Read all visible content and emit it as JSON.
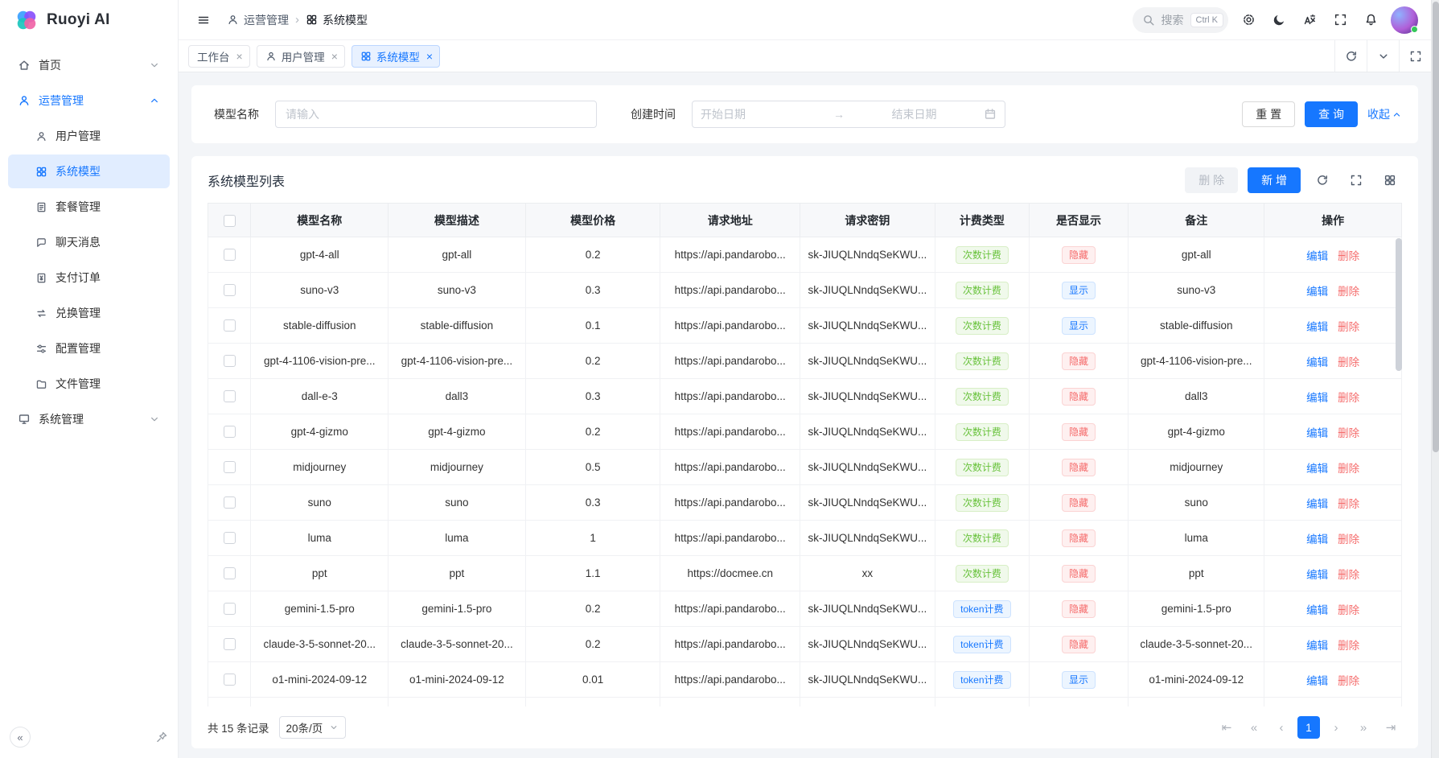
{
  "app": {
    "name": "Ruoyi AI"
  },
  "topbar": {
    "breadcrumb": [
      {
        "label": "运营管理",
        "icon": "operate"
      },
      {
        "label": "系统模型",
        "icon": "grid"
      }
    ],
    "search": {
      "placeholder": "搜索",
      "shortcut": "Ctrl K"
    },
    "actions": [
      "gear",
      "moon",
      "translate",
      "fullscreen",
      "bell"
    ]
  },
  "sidebar": {
    "sections": [
      {
        "label": "首页",
        "icon": "home",
        "state": "collapsed",
        "active": false,
        "children": []
      },
      {
        "label": "运营管理",
        "icon": "operate",
        "state": "expanded",
        "active": true,
        "children": [
          {
            "label": "用户管理",
            "icon": "user",
            "active": false
          },
          {
            "label": "系统模型",
            "icon": "grid",
            "active": true
          },
          {
            "label": "套餐管理",
            "icon": "package",
            "active": false
          },
          {
            "label": "聊天消息",
            "icon": "chat",
            "active": false
          },
          {
            "label": "支付订单",
            "icon": "order",
            "active": false
          },
          {
            "label": "兑换管理",
            "icon": "exchange",
            "active": false
          },
          {
            "label": "配置管理",
            "icon": "config",
            "active": false
          },
          {
            "label": "文件管理",
            "icon": "folder",
            "active": false
          }
        ]
      },
      {
        "label": "系统管理",
        "icon": "system",
        "state": "collapsed",
        "active": false,
        "children": []
      }
    ]
  },
  "tabs": {
    "items": [
      {
        "label": "工作台",
        "icon": "",
        "active": false
      },
      {
        "label": "用户管理",
        "icon": "user",
        "active": false
      },
      {
        "label": "系统模型",
        "icon": "grid",
        "active": true
      }
    ]
  },
  "filter": {
    "model_name_label": "模型名称",
    "model_name_placeholder": "请输入",
    "create_time_label": "创建时间",
    "start_placeholder": "开始日期",
    "end_placeholder": "结束日期",
    "reset": "重 置",
    "search": "查 询",
    "collapse": "收起"
  },
  "panel": {
    "title": "系统模型列表",
    "delete": "删 除",
    "add": "新 增"
  },
  "table": {
    "columns": [
      "模型名称",
      "模型描述",
      "模型价格",
      "请求地址",
      "请求密钥",
      "计费类型",
      "是否显示",
      "备注",
      "操作"
    ],
    "edit": "编辑",
    "remove": "删除",
    "rows": [
      {
        "name": "gpt-4-all",
        "desc": "gpt-all",
        "price": "0.2",
        "url": "https://api.pandarobo...",
        "key": "sk-JIUQLNndqSeKWU...",
        "billing": "次数计费",
        "billing_type": "count",
        "visible": "隐藏",
        "remark": "gpt-all"
      },
      {
        "name": "suno-v3",
        "desc": "suno-v3",
        "price": "0.3",
        "url": "https://api.pandarobo...",
        "key": "sk-JIUQLNndqSeKWU...",
        "billing": "次数计费",
        "billing_type": "count",
        "visible": "显示",
        "remark": "suno-v3"
      },
      {
        "name": "stable-diffusion",
        "desc": "stable-diffusion",
        "price": "0.1",
        "url": "https://api.pandarobo...",
        "key": "sk-JIUQLNndqSeKWU...",
        "billing": "次数计费",
        "billing_type": "count",
        "visible": "显示",
        "remark": "stable-diffusion"
      },
      {
        "name": "gpt-4-1106-vision-pre...",
        "desc": "gpt-4-1106-vision-pre...",
        "price": "0.2",
        "url": "https://api.pandarobo...",
        "key": "sk-JIUQLNndqSeKWU...",
        "billing": "次数计费",
        "billing_type": "count",
        "visible": "隐藏",
        "remark": "gpt-4-1106-vision-pre..."
      },
      {
        "name": "dall-e-3",
        "desc": "dall3",
        "price": "0.3",
        "url": "https://api.pandarobo...",
        "key": "sk-JIUQLNndqSeKWU...",
        "billing": "次数计费",
        "billing_type": "count",
        "visible": "隐藏",
        "remark": "dall3"
      },
      {
        "name": "gpt-4-gizmo",
        "desc": "gpt-4-gizmo",
        "price": "0.2",
        "url": "https://api.pandarobo...",
        "key": "sk-JIUQLNndqSeKWU...",
        "billing": "次数计费",
        "billing_type": "count",
        "visible": "隐藏",
        "remark": "gpt-4-gizmo"
      },
      {
        "name": "midjourney",
        "desc": "midjourney",
        "price": "0.5",
        "url": "https://api.pandarobo...",
        "key": "sk-JIUQLNndqSeKWU...",
        "billing": "次数计费",
        "billing_type": "count",
        "visible": "隐藏",
        "remark": "midjourney"
      },
      {
        "name": "suno",
        "desc": "suno",
        "price": "0.3",
        "url": "https://api.pandarobo...",
        "key": "sk-JIUQLNndqSeKWU...",
        "billing": "次数计费",
        "billing_type": "count",
        "visible": "隐藏",
        "remark": "suno"
      },
      {
        "name": "luma",
        "desc": "luma",
        "price": "1",
        "url": "https://api.pandarobo...",
        "key": "sk-JIUQLNndqSeKWU...",
        "billing": "次数计费",
        "billing_type": "count",
        "visible": "隐藏",
        "remark": "luma"
      },
      {
        "name": "ppt",
        "desc": "ppt",
        "price": "1.1",
        "url": "https://docmee.cn",
        "key": "xx",
        "billing": "次数计费",
        "billing_type": "count",
        "visible": "隐藏",
        "remark": "ppt"
      },
      {
        "name": "gemini-1.5-pro",
        "desc": "gemini-1.5-pro",
        "price": "0.2",
        "url": "https://api.pandarobo...",
        "key": "sk-JIUQLNndqSeKWU...",
        "billing": "token计费",
        "billing_type": "token",
        "visible": "隐藏",
        "remark": "gemini-1.5-pro"
      },
      {
        "name": "claude-3-5-sonnet-20...",
        "desc": "claude-3-5-sonnet-20...",
        "price": "0.2",
        "url": "https://api.pandarobo...",
        "key": "sk-JIUQLNndqSeKWU...",
        "billing": "token计费",
        "billing_type": "token",
        "visible": "隐藏",
        "remark": "claude-3-5-sonnet-20..."
      },
      {
        "name": "o1-mini-2024-09-12",
        "desc": "o1-mini-2024-09-12",
        "price": "0.01",
        "url": "https://api.pandarobo...",
        "key": "sk-JIUQLNndqSeKWU...",
        "billing": "token计费",
        "billing_type": "token",
        "visible": "显示",
        "remark": "o1-mini-2024-09-12"
      }
    ]
  },
  "pagination": {
    "total": "共 15 条记录",
    "page_size": "20条/页",
    "page": "1"
  }
}
